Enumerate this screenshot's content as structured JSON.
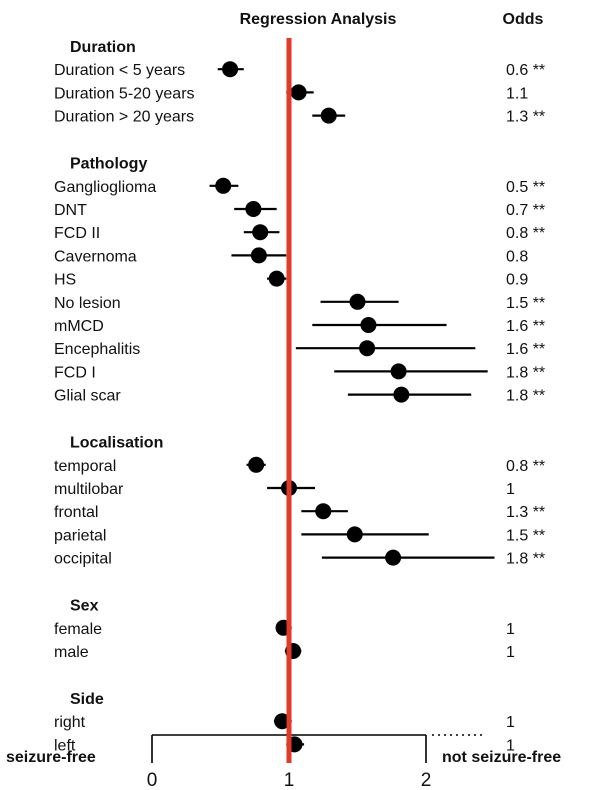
{
  "chart_data": {
    "type": "forest",
    "title": "Regression Analysis",
    "odds_header": "Odds",
    "reference_value": 1,
    "xlim": [
      0,
      2
    ],
    "x_ticks": [
      "0",
      "1",
      "2"
    ],
    "left_label": "seizure-free",
    "right_label": "not seizure-free",
    "colors": {
      "reference_line": "#e03a2a",
      "points": "#000000"
    },
    "sections": [
      {
        "title": "Duration",
        "rows": [
          {
            "label": "Duration < 5 years",
            "est": 0.57,
            "lo": 0.48,
            "hi": 0.67,
            "odds": "0.6 **"
          },
          {
            "label": "Duration 5-20 years",
            "est": 1.07,
            "lo": 0.98,
            "hi": 1.18,
            "odds": "1.1"
          },
          {
            "label": "Duration > 20 years",
            "est": 1.29,
            "lo": 1.17,
            "hi": 1.41,
            "odds": "1.3 **"
          }
        ]
      },
      {
        "title": "Pathology",
        "rows": [
          {
            "label": "Ganglioglioma",
            "est": 0.52,
            "lo": 0.42,
            "hi": 0.63,
            "odds": "0.5 **"
          },
          {
            "label": "DNT",
            "est": 0.74,
            "lo": 0.6,
            "hi": 0.91,
            "odds": "0.7 **"
          },
          {
            "label": "FCD II",
            "est": 0.79,
            "lo": 0.67,
            "hi": 0.93,
            "odds": "0.8 **"
          },
          {
            "label": "Cavernoma",
            "est": 0.78,
            "lo": 0.58,
            "hi": 0.98,
            "odds": "0.8"
          },
          {
            "label": "HS",
            "est": 0.91,
            "lo": 0.84,
            "hi": 0.98,
            "odds": "0.9"
          },
          {
            "label": "No lesion",
            "est": 1.5,
            "lo": 1.23,
            "hi": 1.8,
            "odds": "1.5 **"
          },
          {
            "label": "mMCD",
            "est": 1.58,
            "lo": 1.17,
            "hi": 2.15,
            "odds": "1.6 **"
          },
          {
            "label": "Encephalitis",
            "est": 1.57,
            "lo": 1.05,
            "hi": 2.36,
            "odds": "1.6 **"
          },
          {
            "label": "FCD I",
            "est": 1.8,
            "lo": 1.33,
            "hi": 2.45,
            "odds": "1.8 **"
          },
          {
            "label": "Glial scar",
            "est": 1.82,
            "lo": 1.43,
            "hi": 2.33,
            "odds": "1.8 **"
          }
        ]
      },
      {
        "title": "Localisation",
        "rows": [
          {
            "label": "temporal",
            "est": 0.76,
            "lo": 0.69,
            "hi": 0.83,
            "odds": "0.8 **"
          },
          {
            "label": "multilobar",
            "est": 1.0,
            "lo": 0.84,
            "hi": 1.19,
            "odds": "1"
          },
          {
            "label": "frontal",
            "est": 1.25,
            "lo": 1.09,
            "hi": 1.43,
            "odds": "1.3 **"
          },
          {
            "label": "parietal",
            "est": 1.48,
            "lo": 1.09,
            "hi": 2.02,
            "odds": "1.5 **"
          },
          {
            "label": "occipital",
            "est": 1.76,
            "lo": 1.24,
            "hi": 2.5,
            "odds": "1.8 **"
          }
        ]
      },
      {
        "title": "Sex",
        "rows": [
          {
            "label": "female",
            "est": 0.96,
            "lo": 0.91,
            "hi": 1.02,
            "odds": "1"
          },
          {
            "label": "male",
            "est": 1.03,
            "lo": 0.97,
            "hi": 1.09,
            "odds": "1"
          }
        ]
      },
      {
        "title": "Side",
        "rows": [
          {
            "label": "right",
            "est": 0.95,
            "lo": 0.89,
            "hi": 1.02,
            "odds": "1"
          },
          {
            "label": "left",
            "est": 1.04,
            "lo": 0.98,
            "hi": 1.11,
            "odds": "1"
          }
        ]
      }
    ]
  }
}
